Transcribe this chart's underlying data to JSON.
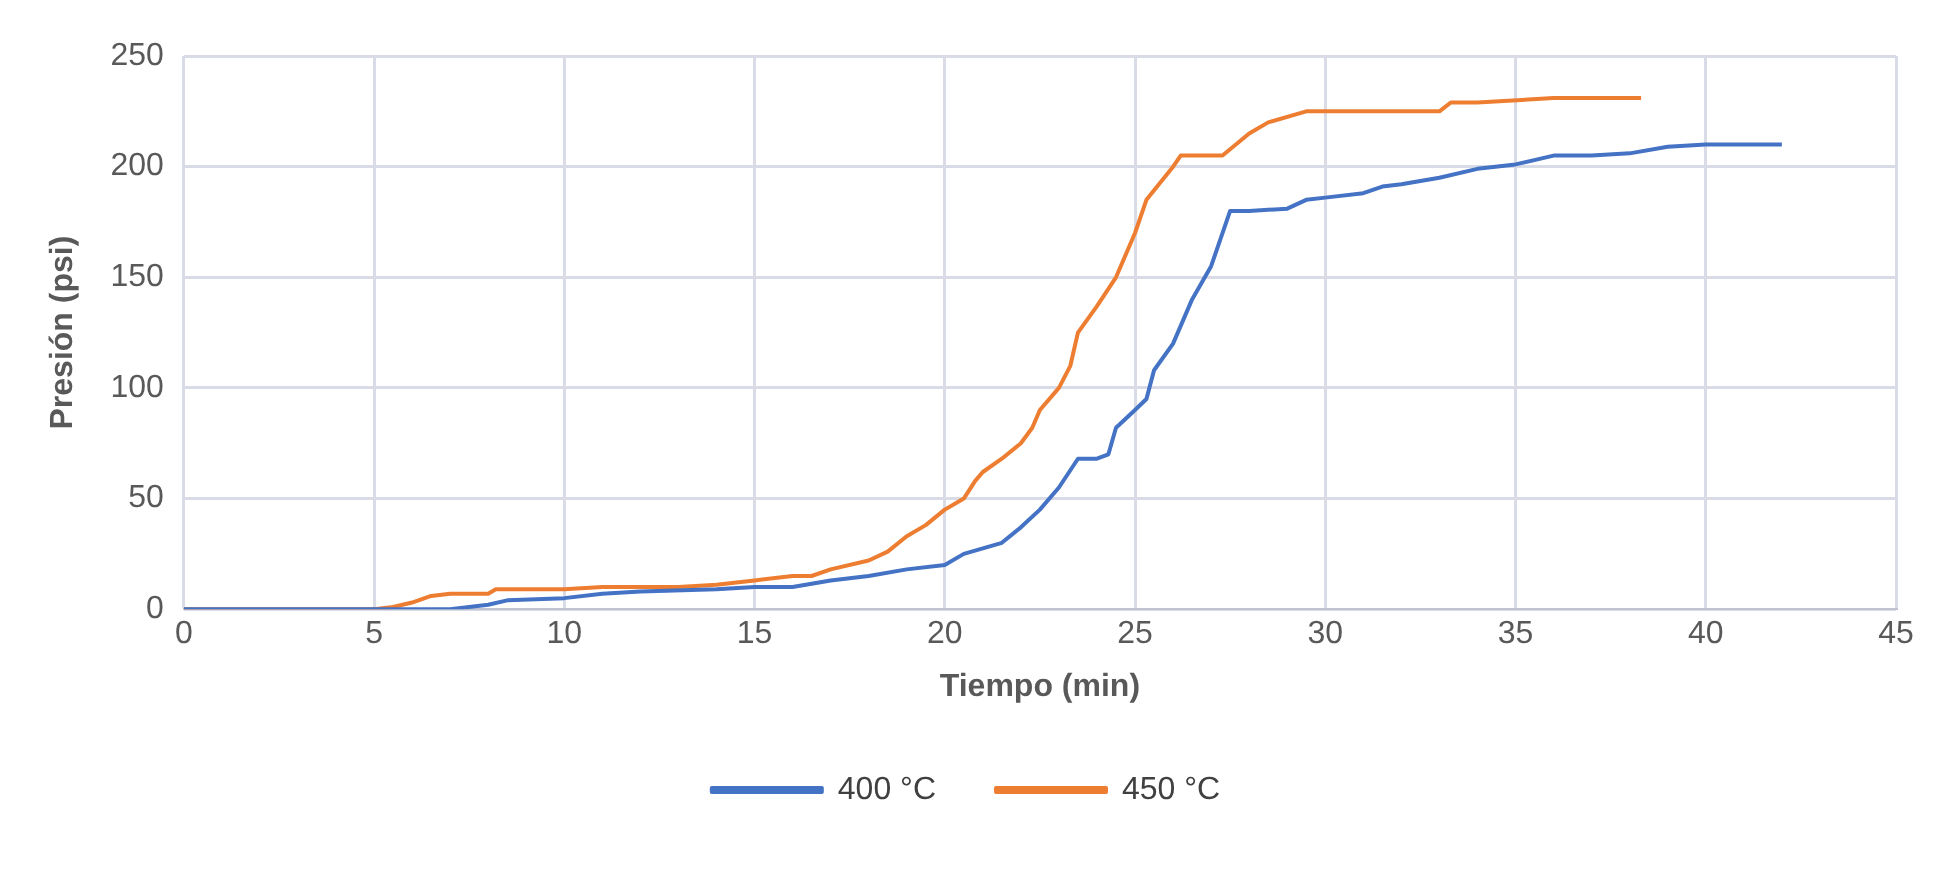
{
  "chart_data": {
    "type": "line",
    "xlabel": "Tiempo (min)",
    "ylabel": "Presión (psi)",
    "xlim": [
      0,
      45
    ],
    "xticks": [
      0,
      5,
      10,
      15,
      20,
      25,
      30,
      35,
      40,
      45
    ],
    "ylim": [
      0,
      250
    ],
    "yticks": [
      0,
      50,
      100,
      150,
      200,
      250
    ],
    "grid": true,
    "legend": "bottom",
    "marker": "none",
    "line_style": "solid",
    "series": [
      {
        "name": "400 °C",
        "color": "#4472c4",
        "x": [
          0,
          7,
          8,
          8.5,
          10,
          11,
          12,
          14,
          15,
          16,
          17,
          18,
          19,
          20,
          20.5,
          21.5,
          22,
          22.5,
          23,
          23.5,
          24,
          24.3,
          24.5,
          25,
          25.3,
          25.5,
          26,
          26.5,
          27,
          27.2,
          27.5,
          28,
          29,
          29.5,
          30,
          31,
          31.5,
          32,
          33,
          34,
          35,
          36,
          37,
          38,
          39,
          40,
          42
        ],
        "values": [
          0,
          0,
          2,
          4,
          5,
          7,
          8,
          9,
          10,
          10,
          13,
          15,
          18,
          20,
          25,
          30,
          37,
          45,
          55,
          68,
          68,
          70,
          82,
          90,
          95,
          108,
          120,
          140,
          155,
          165,
          180,
          180,
          181,
          185,
          186,
          188,
          191,
          192,
          195,
          199,
          201,
          205,
          205,
          206,
          209,
          210,
          210
        ]
      },
      {
        "name": "450 °C",
        "color": "#ed7d31",
        "x": [
          0,
          5,
          5.5,
          6,
          6.5,
          7,
          8,
          8.2,
          10,
          11,
          13,
          14,
          15,
          16,
          16.5,
          17,
          18,
          18.5,
          19,
          19.5,
          20,
          20.5,
          20.8,
          21,
          21.5,
          22,
          22.3,
          22.5,
          23,
          23.3,
          23.5,
          24,
          24.5,
          25,
          25.3,
          26,
          26.2,
          27.3,
          28,
          28.5,
          29.5,
          30,
          33,
          33.3,
          34,
          36,
          38.3
        ],
        "values": [
          0,
          0,
          1,
          3,
          6,
          7,
          7,
          9,
          9,
          10,
          10,
          11,
          13,
          15,
          15,
          18,
          22,
          26,
          33,
          38,
          45,
          50,
          58,
          62,
          68,
          75,
          82,
          90,
          100,
          110,
          125,
          137,
          150,
          170,
          185,
          200,
          205,
          205,
          215,
          220,
          225,
          225,
          225,
          229,
          229,
          231,
          231
        ]
      }
    ]
  }
}
